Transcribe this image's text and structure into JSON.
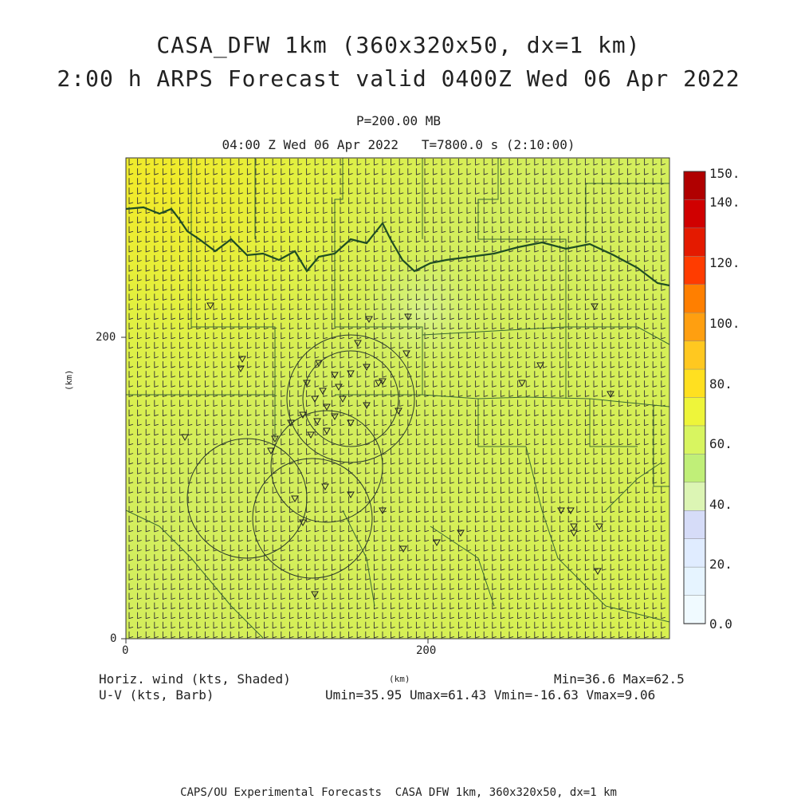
{
  "header": {
    "title_line1": "CASA_DFW 1km (360x320x50, dx=1 km)",
    "title_line2": "2:00 h ARPS Forecast valid 0400Z Wed 06 Apr 2022",
    "level": "P=200.00 MB",
    "valid_time": "04:00 Z Wed 06 Apr 2022   T=7800.0 s (2:10:00)"
  },
  "axes": {
    "x_ticks": [
      "0",
      "200"
    ],
    "y_ticks": [
      "0",
      "200"
    ],
    "x_label": "(km)",
    "y_label": "(km)"
  },
  "colorbar": {
    "labels": [
      "150.",
      "140.",
      "120.",
      "100.",
      "80.",
      "60.",
      "40.",
      "20.",
      "0.0"
    ],
    "colors": [
      "#b00000",
      "#d00000",
      "#e41a00",
      "#ff3c00",
      "#ff7f00",
      "#ff9f10",
      "#ffc820",
      "#ffe020",
      "#eef53a",
      "#d8f560",
      "#c0ef78",
      "#dcf5b4",
      "#d6dcf8",
      "#e0ecff",
      "#e6f4ff",
      "#f0faff"
    ]
  },
  "legend": {
    "shaded": "Horiz. wind (kts, Shaded)",
    "barb": "U-V (kts, Barb)",
    "minmax": "Min=36.6 Max=62.5",
    "uv_range": "Umin=35.95 Umax=61.43 Vmin=-16.63 Vmax=9.06"
  },
  "footer": "CAPS/OU Experimental Forecasts  CASA DFW 1km, 360x320x50, dx=1 km"
}
